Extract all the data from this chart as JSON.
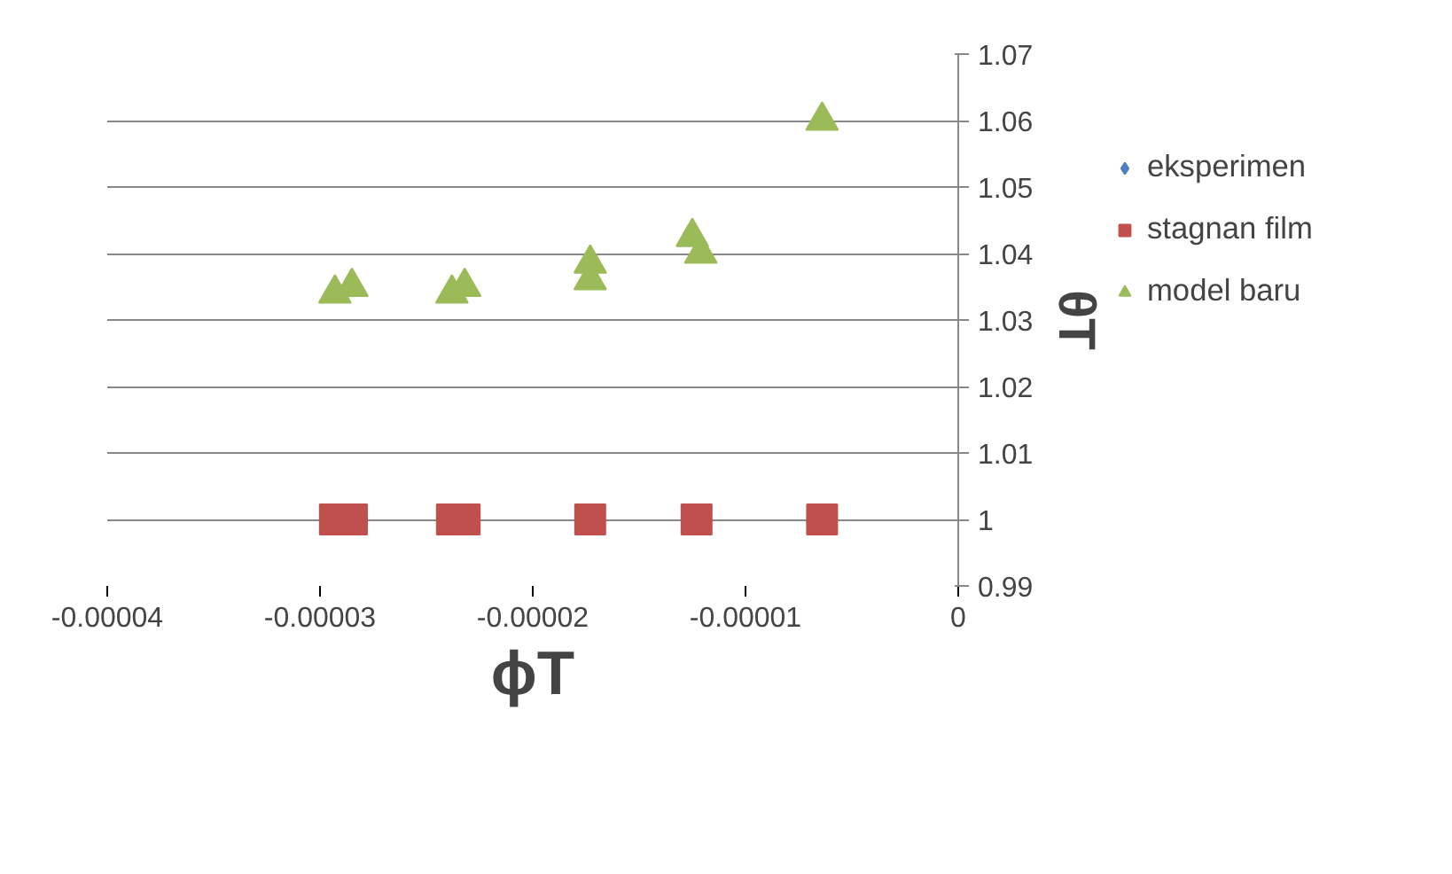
{
  "chart_data": {
    "type": "scatter",
    "xlabel": "ϕT",
    "ylabel": "θT",
    "xlim": [
      -4e-05,
      0
    ],
    "ylim": [
      0.99,
      1.07
    ],
    "xticks": [
      {
        "value": -4e-05,
        "label": "-0.00004"
      },
      {
        "value": -3e-05,
        "label": "-0.00003"
      },
      {
        "value": -2e-05,
        "label": "-0.00002"
      },
      {
        "value": -1e-05,
        "label": "-0.00001"
      },
      0
    ],
    "yticks": [
      0.99,
      1,
      1.01,
      1.02,
      1.03,
      1.04,
      1.05,
      1.06,
      1.07
    ],
    "grid": "y",
    "legend": "right",
    "series": [
      {
        "name": "eksperimen",
        "color": "#4f81bd",
        "marker": "diamond"
      },
      {
        "name": "stagnan film",
        "color": "#c0504d",
        "marker": "square",
        "x": [
          -2.93e-05,
          -2.85e-05,
          -2.38e-05,
          -2.32e-05,
          -1.73e-05,
          -1.23e-05,
          -6.4e-06
        ],
        "values": [
          1,
          1,
          1,
          1,
          1,
          1,
          1
        ]
      },
      {
        "name": "model baru",
        "color": "#9bbb59",
        "marker": "triangle",
        "x": [
          -2.93e-05,
          -2.85e-05,
          -2.38e-05,
          -2.32e-05,
          -1.73e-05,
          -1.73e-05,
          -1.25e-05,
          -1.21e-05,
          -6.4e-06
        ],
        "values": [
          1.034,
          1.035,
          1.034,
          1.035,
          1.0385,
          1.036,
          1.0425,
          1.04,
          1.06
        ]
      }
    ]
  }
}
